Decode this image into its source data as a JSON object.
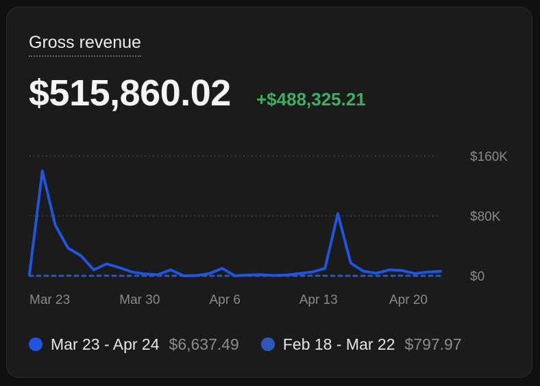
{
  "card": {
    "title": "Gross revenue",
    "total": "$515,860.02",
    "delta": "+$488,325.21"
  },
  "colors": {
    "current": "#1f55e0",
    "previous": "#2f58b8",
    "delta": "#3fae62"
  },
  "chart_data": {
    "type": "line",
    "title": "",
    "xlabel": "",
    "ylabel": "",
    "ylim": [
      0,
      160000
    ],
    "yticks": [
      {
        "value": 160000,
        "label": "$160K"
      },
      {
        "value": 80000,
        "label": "$80K"
      },
      {
        "value": 0,
        "label": "$0"
      }
    ],
    "xticks": [
      "Mar 23",
      "Mar 30",
      "Apr 6",
      "Apr 13",
      "Apr 20"
    ],
    "grid": true,
    "series": [
      {
        "name": "Mar 23 - Apr 24",
        "style": "solid",
        "x": [
          "Mar 23",
          "Mar 24",
          "Mar 25",
          "Mar 26",
          "Mar 27",
          "Mar 28",
          "Mar 29",
          "Mar 30",
          "Mar 31",
          "Apr 1",
          "Apr 2",
          "Apr 3",
          "Apr 4",
          "Apr 5",
          "Apr 6",
          "Apr 7",
          "Apr 8",
          "Apr 9",
          "Apr 10",
          "Apr 11",
          "Apr 12",
          "Apr 13",
          "Apr 14",
          "Apr 15",
          "Apr 16",
          "Apr 17",
          "Apr 18",
          "Apr 19",
          "Apr 20",
          "Apr 21",
          "Apr 22",
          "Apr 23",
          "Apr 24"
        ],
        "values": [
          2000,
          140000,
          68000,
          37000,
          27000,
          8000,
          16000,
          11000,
          5000,
          2500,
          1500,
          8000,
          0,
          500,
          3000,
          10000,
          0,
          1000,
          1500,
          500,
          1000,
          3000,
          5000,
          10000,
          83000,
          17000,
          6000,
          3500,
          8000,
          7000,
          3000,
          5000,
          6000
        ]
      },
      {
        "name": "Feb 18 - Mar 22",
        "style": "dashed",
        "x": [
          "Mar 23",
          "Mar 24",
          "Mar 25",
          "Mar 26",
          "Mar 27",
          "Mar 28",
          "Mar 29",
          "Mar 30",
          "Mar 31",
          "Apr 1",
          "Apr 2",
          "Apr 3",
          "Apr 4",
          "Apr 5",
          "Apr 6",
          "Apr 7",
          "Apr 8",
          "Apr 9",
          "Apr 10",
          "Apr 11",
          "Apr 12",
          "Apr 13",
          "Apr 14",
          "Apr 15",
          "Apr 16",
          "Apr 17",
          "Apr 18",
          "Apr 19",
          "Apr 20",
          "Apr 21",
          "Apr 22",
          "Apr 23",
          "Apr 24"
        ],
        "values": [
          0,
          0,
          0,
          100,
          0,
          0,
          200,
          0,
          0,
          0,
          100,
          0,
          0,
          0,
          0,
          0,
          0,
          100,
          0,
          0,
          0,
          0,
          200,
          0,
          0,
          0,
          0,
          0,
          0,
          100,
          0,
          0,
          0
        ]
      }
    ],
    "legend": [
      {
        "label": "Mar 23 - Apr 24",
        "value": "$6,637.49"
      },
      {
        "label": "Feb 18 - Mar 22",
        "value": "$797.97"
      }
    ]
  }
}
